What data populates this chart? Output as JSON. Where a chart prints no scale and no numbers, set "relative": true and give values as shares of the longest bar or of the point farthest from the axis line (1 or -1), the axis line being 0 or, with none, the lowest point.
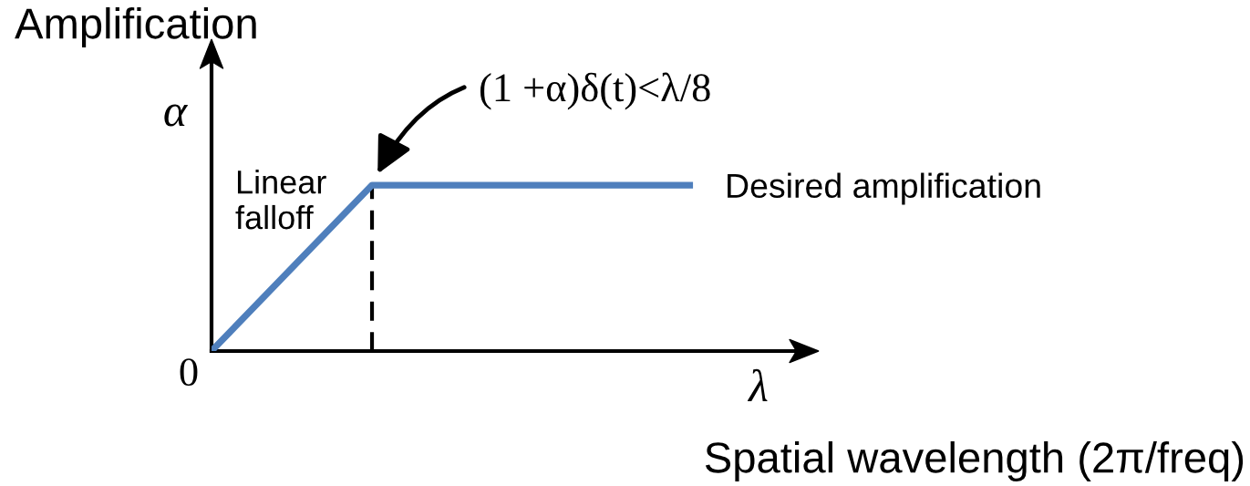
{
  "chart_data": {
    "type": "line",
    "xlabel": "Spatial wavelength (2π/freq)",
    "ylabel": "Amplification",
    "categories": [
      null,
      null,
      null,
      null
    ],
    "values": [
      0,
      1,
      1,
      1
    ],
    "color": "#4f7fbc",
    "relative": true,
    "annotations": [
      "α",
      "λ",
      "0",
      "Linear falloff",
      "Desired amplification",
      "(1 +α)δ(t)<λ/8"
    ]
  }
}
